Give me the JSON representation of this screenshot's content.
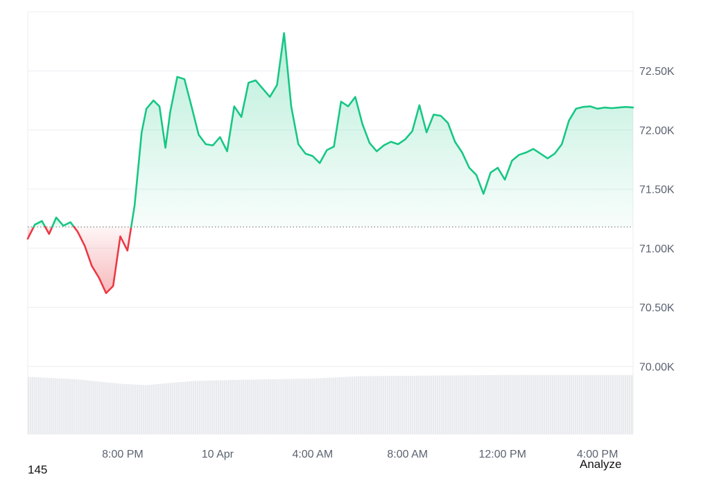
{
  "chart_data": {
    "type": "area",
    "y_ticks": [
      "72.50K",
      "72.00K",
      "71.50K",
      "71.00K",
      "70.50K",
      "70.00K"
    ],
    "y_tick_values": [
      72500,
      72000,
      71500,
      71000,
      70500,
      70000
    ],
    "x_ticks": [
      "8:00 PM",
      "10 Apr",
      "4:00 AM",
      "8:00 AM",
      "12:00 PM",
      "4:00 PM"
    ],
    "x_tick_hours": [
      4,
      8,
      12,
      16,
      20,
      24
    ],
    "baseline": 71180,
    "ylim": [
      69950,
      73000
    ],
    "xlim": [
      0,
      25.5
    ],
    "colors": {
      "up": "#16c784",
      "down": "#ea3943",
      "volume": "#e8eaee",
      "grid": "#eceef1"
    },
    "series": [
      {
        "x": [
          0,
          0.3,
          0.6,
          0.9,
          1.2,
          1.5,
          1.8,
          2.1,
          2.4,
          2.7,
          3.0,
          3.3,
          3.6,
          3.9,
          4.2,
          4.5,
          4.8,
          5.0,
          5.3,
          5.55,
          5.8,
          6.0,
          6.3,
          6.6,
          6.9,
          7.2,
          7.5,
          7.8,
          8.1,
          8.4,
          8.7,
          9.0,
          9.3,
          9.6,
          9.9,
          10.2,
          10.5,
          10.8,
          11.1,
          11.4,
          11.7,
          12.0,
          12.3,
          12.6,
          12.9,
          13.2,
          13.5,
          13.8,
          14.1,
          14.4,
          14.7,
          15.0,
          15.3,
          15.6,
          15.9,
          16.2,
          16.5,
          16.8,
          17.1,
          17.4,
          17.7,
          18.0,
          18.3,
          18.6,
          18.9,
          19.2,
          19.5,
          19.8,
          20.1,
          20.4,
          20.7,
          21.0,
          21.3,
          21.6,
          21.9,
          22.2,
          22.5,
          22.8,
          23.1,
          23.4,
          23.7,
          24.0,
          24.3,
          24.6,
          24.9,
          25.2,
          25.5
        ],
        "y": [
          71080,
          71200,
          71230,
          71120,
          71260,
          71190,
          71220,
          71140,
          71020,
          70850,
          70750,
          70620,
          70680,
          71100,
          70980,
          71360,
          71980,
          72180,
          72250,
          72200,
          71850,
          72150,
          72450,
          72430,
          72200,
          71960,
          71880,
          71870,
          71940,
          71820,
          72200,
          72110,
          72400,
          72420,
          72350,
          72280,
          72380,
          72820,
          72200,
          71880,
          71800,
          71780,
          71720,
          71830,
          71860,
          72240,
          72200,
          72280,
          72050,
          71890,
          71820,
          71870,
          71900,
          71880,
          71920,
          71990,
          72210,
          71980,
          72130,
          72120,
          72060,
          71900,
          71810,
          71680,
          71620,
          71460,
          71640,
          71680,
          71580,
          71740,
          71790,
          71810,
          71840,
          71800,
          71760,
          71800,
          71880,
          72080,
          72180,
          72195,
          72200,
          72180,
          72190,
          72185,
          72190,
          72195,
          72190
        ]
      }
    ],
    "volume": {
      "x": [
        0,
        2,
        4,
        5,
        7,
        9,
        12,
        14,
        17,
        20,
        23,
        25.5
      ],
      "relative": [
        0.96,
        0.92,
        0.84,
        0.82,
        0.89,
        0.91,
        0.93,
        0.97,
        0.98,
        0.99,
        0.99,
        0.99
      ]
    }
  },
  "footer": {
    "left_number": "145",
    "analyze_label": "Analyze"
  }
}
